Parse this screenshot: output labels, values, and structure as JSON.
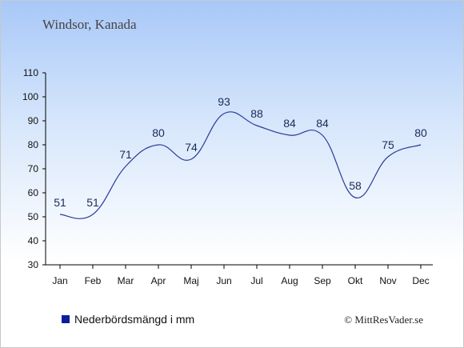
{
  "title": "Windsor, Kanada",
  "legend": {
    "label": "Nederbördsmängd i mm",
    "color": "#0a1f9e"
  },
  "copyright": "© MittResVader.se",
  "colors": {
    "line": "#2a3a9a",
    "axis": "#000000"
  },
  "chart_data": {
    "type": "line",
    "title": "Windsor, Kanada",
    "categories": [
      "Jan",
      "Feb",
      "Mar",
      "Apr",
      "Maj",
      "Jun",
      "Jul",
      "Aug",
      "Sep",
      "Okt",
      "Nov",
      "Dec"
    ],
    "series": [
      {
        "name": "Nederbördsmängd i mm",
        "values": [
          51,
          51,
          71,
          80,
          74,
          93,
          88,
          84,
          84,
          58,
          75,
          80
        ]
      }
    ],
    "ylim": [
      30,
      110
    ],
    "yticks": [
      30,
      40,
      50,
      60,
      70,
      80,
      90,
      100,
      110
    ],
    "grid": false,
    "legend_position": "bottom-left"
  }
}
